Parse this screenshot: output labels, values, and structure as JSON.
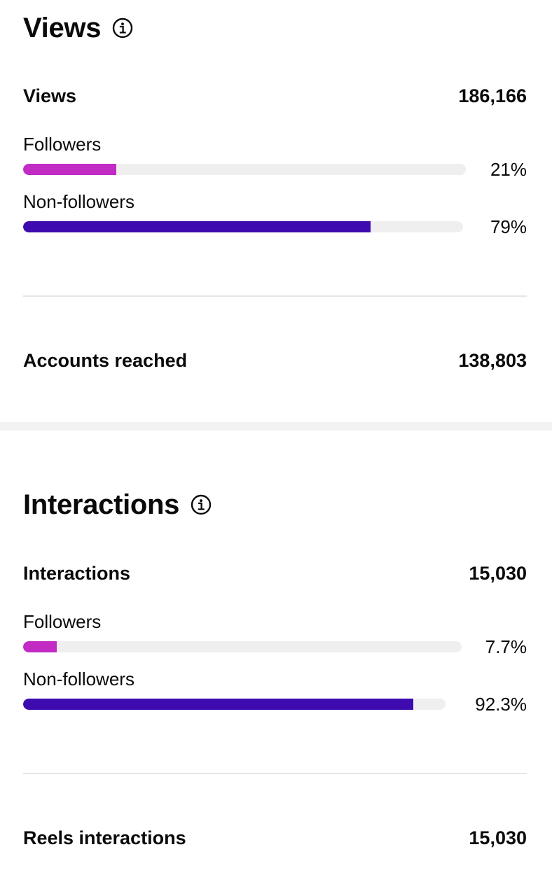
{
  "colors": {
    "followers": "#c22bc4",
    "non_followers": "#3d0bb0",
    "track": "#efefef"
  },
  "views_section": {
    "title": "Views",
    "info_icon": "info-circle-icon",
    "total_label": "Views",
    "total_value": "186,166",
    "followers": {
      "label": "Followers",
      "percent_text": "21%",
      "fraction": 0.21
    },
    "non_followers": {
      "label": "Non-followers",
      "percent_text": "79%",
      "fraction": 0.79
    },
    "accounts_reached_label": "Accounts reached",
    "accounts_reached_value": "138,803"
  },
  "interactions_section": {
    "title": "Interactions",
    "info_icon": "info-circle-icon",
    "total_label": "Interactions",
    "total_value": "15,030",
    "followers": {
      "label": "Followers",
      "percent_text": "7.7%",
      "fraction": 0.077
    },
    "non_followers": {
      "label": "Non-followers",
      "percent_text": "92.3%",
      "fraction": 0.923
    },
    "reels_label": "Reels interactions",
    "reels_value": "15,030"
  }
}
